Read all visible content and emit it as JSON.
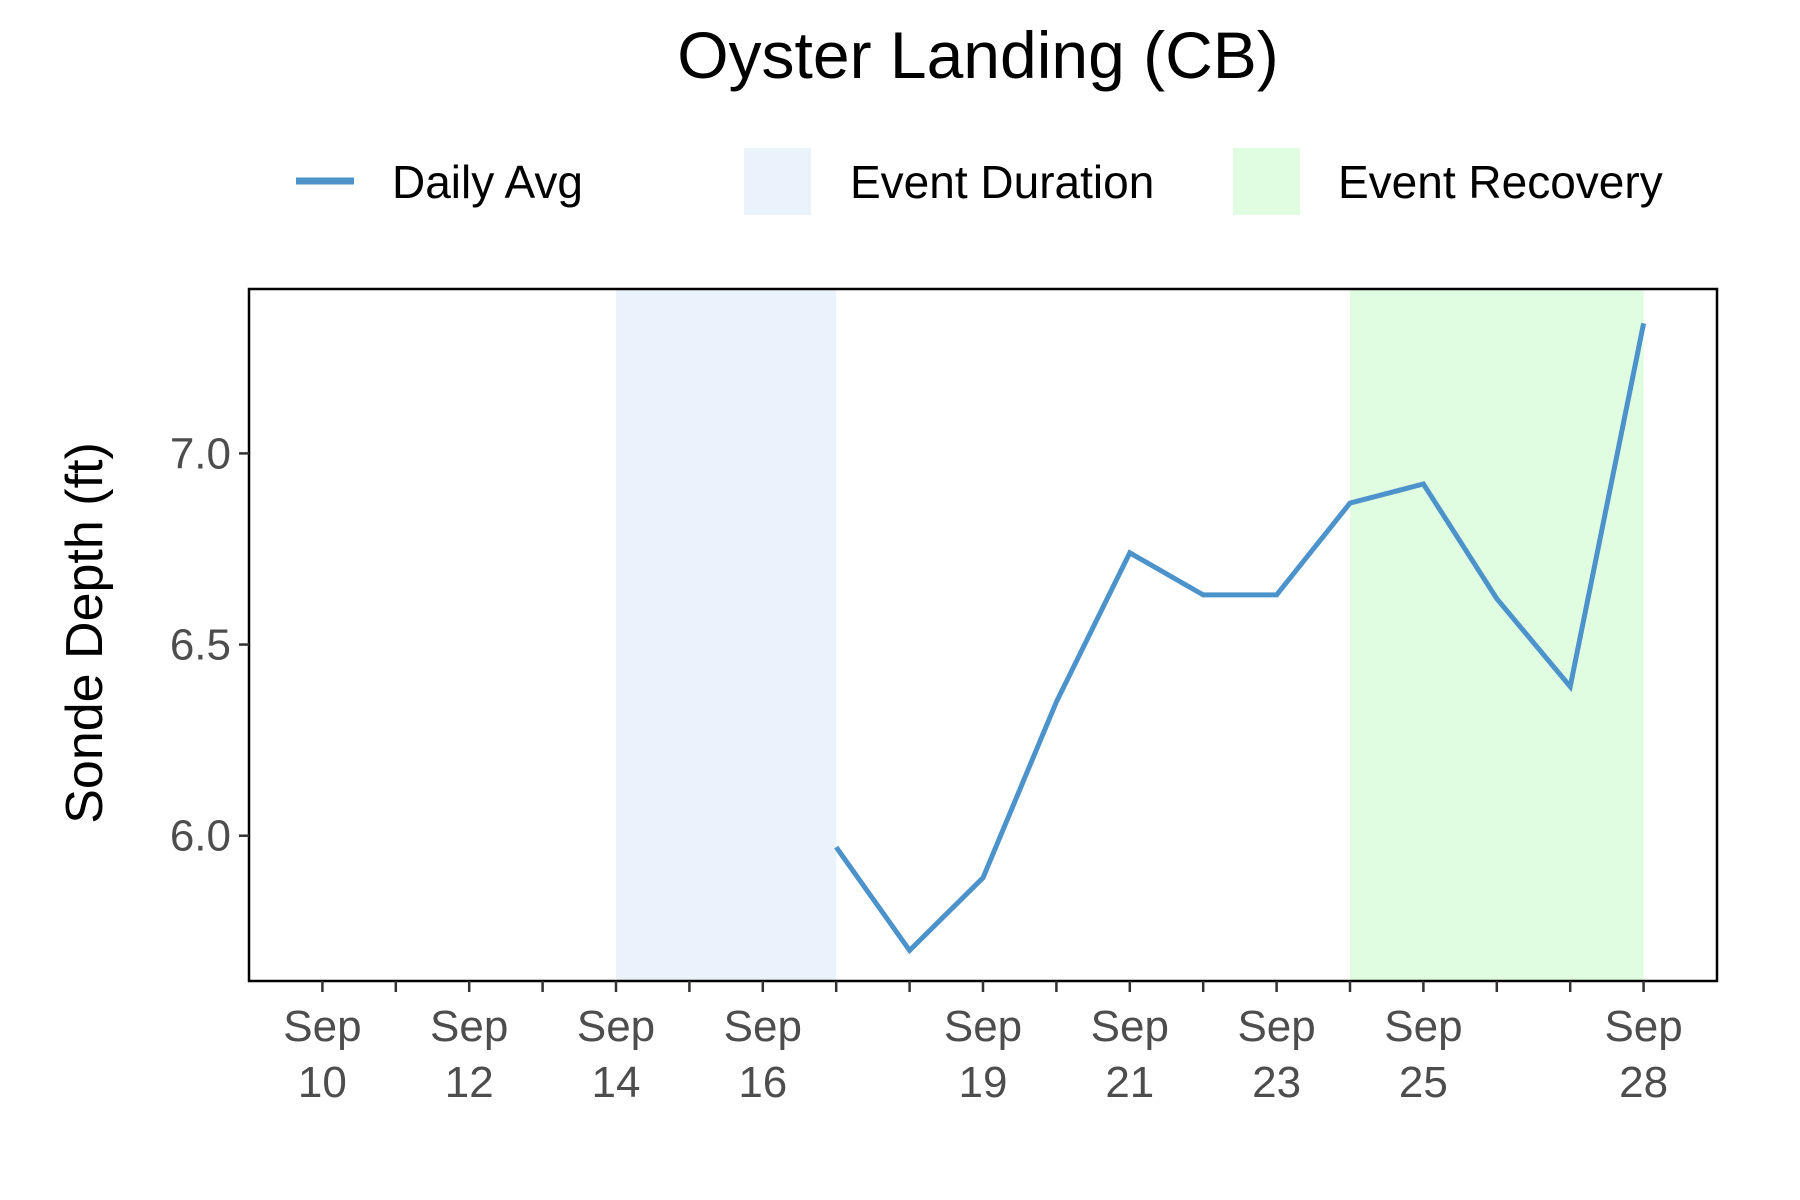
{
  "chart_data": {
    "type": "line",
    "title": "Oyster Landing (CB)",
    "xlabel": "",
    "ylabel": "Sonde Depth (ft)",
    "legend": {
      "placement": "top",
      "entries": [
        {
          "label": "Daily Avg",
          "kind": "line",
          "color": "#4c93cc"
        },
        {
          "label": "Event Duration",
          "kind": "fill",
          "color": "#eaf2fb"
        },
        {
          "label": "Event Recovery",
          "kind": "fill",
          "color": "#e1fde1"
        }
      ]
    },
    "xlim": [
      "2023-09-09",
      "2023-09-29"
    ],
    "ylim": [
      5.62,
      7.43
    ],
    "grid": false,
    "x_ticks": [
      {
        "date": "2023-09-10",
        "label": [
          "Sep",
          "10"
        ]
      },
      {
        "date": "2023-09-11",
        "label": []
      },
      {
        "date": "2023-09-12",
        "label": [
          "Sep",
          "12"
        ]
      },
      {
        "date": "2023-09-13",
        "label": []
      },
      {
        "date": "2023-09-14",
        "label": [
          "Sep",
          "14"
        ]
      },
      {
        "date": "2023-09-15",
        "label": []
      },
      {
        "date": "2023-09-16",
        "label": [
          "Sep",
          "16"
        ]
      },
      {
        "date": "2023-09-17",
        "label": []
      },
      {
        "date": "2023-09-18",
        "label": []
      },
      {
        "date": "2023-09-19",
        "label": [
          "Sep",
          "19"
        ]
      },
      {
        "date": "2023-09-20",
        "label": []
      },
      {
        "date": "2023-09-21",
        "label": [
          "Sep",
          "21"
        ]
      },
      {
        "date": "2023-09-22",
        "label": []
      },
      {
        "date": "2023-09-23",
        "label": [
          "Sep",
          "23"
        ]
      },
      {
        "date": "2023-09-24",
        "label": []
      },
      {
        "date": "2023-09-25",
        "label": [
          "Sep",
          "25"
        ]
      },
      {
        "date": "2023-09-26",
        "label": []
      },
      {
        "date": "2023-09-27",
        "label": []
      },
      {
        "date": "2023-09-28",
        "label": [
          "Sep",
          "28"
        ]
      }
    ],
    "y_ticks": [
      {
        "value": 6.0,
        "label": "6.0"
      },
      {
        "value": 6.5,
        "label": "6.5"
      },
      {
        "value": 7.0,
        "label": "7.0"
      }
    ],
    "event_duration": {
      "start": "2023-09-14",
      "end": "2023-09-17",
      "color": "#eaf2fb"
    },
    "event_recovery": {
      "start": "2023-09-24",
      "end": "2023-09-28",
      "color": "#e1fde1"
    },
    "series": [
      {
        "name": "Daily Avg",
        "color": "#4c93cc",
        "points": [
          {
            "x": "2023-09-17",
            "y": 5.97
          },
          {
            "x": "2023-09-18",
            "y": 5.7
          },
          {
            "x": "2023-09-19",
            "y": 5.89
          },
          {
            "x": "2023-09-20",
            "y": 6.35
          },
          {
            "x": "2023-09-21",
            "y": 6.74
          },
          {
            "x": "2023-09-22",
            "y": 6.63
          },
          {
            "x": "2023-09-23",
            "y": 6.63
          },
          {
            "x": "2023-09-24",
            "y": 6.87
          },
          {
            "x": "2023-09-25",
            "y": 6.92
          },
          {
            "x": "2023-09-26",
            "y": 6.62
          },
          {
            "x": "2023-09-27",
            "y": 6.39
          },
          {
            "x": "2023-09-28",
            "y": 7.34
          }
        ]
      }
    ]
  }
}
